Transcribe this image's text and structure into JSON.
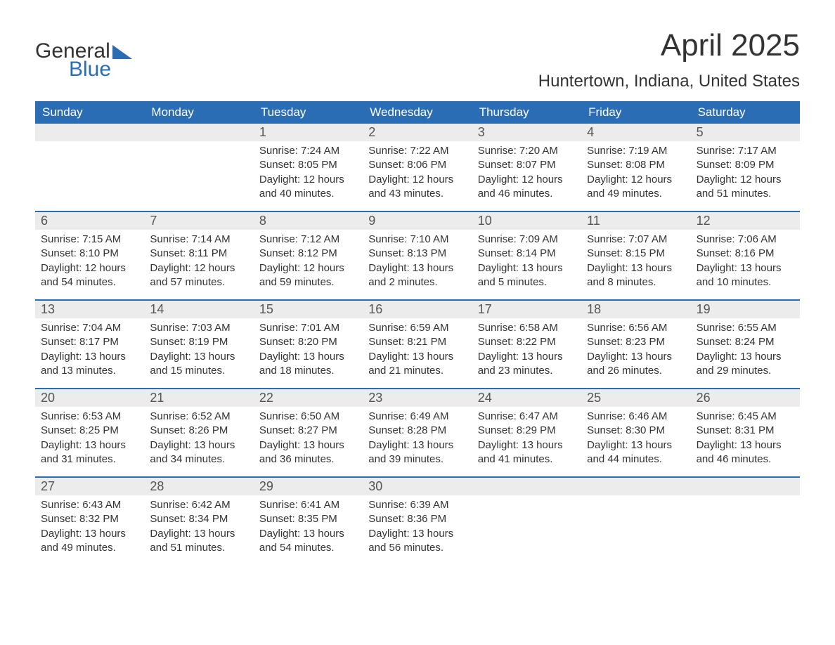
{
  "brand": {
    "part1": "General",
    "part2": "Blue"
  },
  "title": "April 2025",
  "location": "Huntertown, Indiana, United States",
  "colors": {
    "header_bg": "#2a6db5",
    "header_text": "#ffffff",
    "daynum_bg": "#ececec",
    "text": "#333333",
    "rule": "#2a6db5"
  },
  "day_headers": [
    "Sunday",
    "Monday",
    "Tuesday",
    "Wednesday",
    "Thursday",
    "Friday",
    "Saturday"
  ],
  "weeks": [
    [
      {
        "n": "",
        "sr": "",
        "ss": "",
        "dl": ""
      },
      {
        "n": "",
        "sr": "",
        "ss": "",
        "dl": ""
      },
      {
        "n": "1",
        "sr": "Sunrise: 7:24 AM",
        "ss": "Sunset: 8:05 PM",
        "dl": "Daylight: 12 hours and 40 minutes."
      },
      {
        "n": "2",
        "sr": "Sunrise: 7:22 AM",
        "ss": "Sunset: 8:06 PM",
        "dl": "Daylight: 12 hours and 43 minutes."
      },
      {
        "n": "3",
        "sr": "Sunrise: 7:20 AM",
        "ss": "Sunset: 8:07 PM",
        "dl": "Daylight: 12 hours and 46 minutes."
      },
      {
        "n": "4",
        "sr": "Sunrise: 7:19 AM",
        "ss": "Sunset: 8:08 PM",
        "dl": "Daylight: 12 hours and 49 minutes."
      },
      {
        "n": "5",
        "sr": "Sunrise: 7:17 AM",
        "ss": "Sunset: 8:09 PM",
        "dl": "Daylight: 12 hours and 51 minutes."
      }
    ],
    [
      {
        "n": "6",
        "sr": "Sunrise: 7:15 AM",
        "ss": "Sunset: 8:10 PM",
        "dl": "Daylight: 12 hours and 54 minutes."
      },
      {
        "n": "7",
        "sr": "Sunrise: 7:14 AM",
        "ss": "Sunset: 8:11 PM",
        "dl": "Daylight: 12 hours and 57 minutes."
      },
      {
        "n": "8",
        "sr": "Sunrise: 7:12 AM",
        "ss": "Sunset: 8:12 PM",
        "dl": "Daylight: 12 hours and 59 minutes."
      },
      {
        "n": "9",
        "sr": "Sunrise: 7:10 AM",
        "ss": "Sunset: 8:13 PM",
        "dl": "Daylight: 13 hours and 2 minutes."
      },
      {
        "n": "10",
        "sr": "Sunrise: 7:09 AM",
        "ss": "Sunset: 8:14 PM",
        "dl": "Daylight: 13 hours and 5 minutes."
      },
      {
        "n": "11",
        "sr": "Sunrise: 7:07 AM",
        "ss": "Sunset: 8:15 PM",
        "dl": "Daylight: 13 hours and 8 minutes."
      },
      {
        "n": "12",
        "sr": "Sunrise: 7:06 AM",
        "ss": "Sunset: 8:16 PM",
        "dl": "Daylight: 13 hours and 10 minutes."
      }
    ],
    [
      {
        "n": "13",
        "sr": "Sunrise: 7:04 AM",
        "ss": "Sunset: 8:17 PM",
        "dl": "Daylight: 13 hours and 13 minutes."
      },
      {
        "n": "14",
        "sr": "Sunrise: 7:03 AM",
        "ss": "Sunset: 8:19 PM",
        "dl": "Daylight: 13 hours and 15 minutes."
      },
      {
        "n": "15",
        "sr": "Sunrise: 7:01 AM",
        "ss": "Sunset: 8:20 PM",
        "dl": "Daylight: 13 hours and 18 minutes."
      },
      {
        "n": "16",
        "sr": "Sunrise: 6:59 AM",
        "ss": "Sunset: 8:21 PM",
        "dl": "Daylight: 13 hours and 21 minutes."
      },
      {
        "n": "17",
        "sr": "Sunrise: 6:58 AM",
        "ss": "Sunset: 8:22 PM",
        "dl": "Daylight: 13 hours and 23 minutes."
      },
      {
        "n": "18",
        "sr": "Sunrise: 6:56 AM",
        "ss": "Sunset: 8:23 PM",
        "dl": "Daylight: 13 hours and 26 minutes."
      },
      {
        "n": "19",
        "sr": "Sunrise: 6:55 AM",
        "ss": "Sunset: 8:24 PM",
        "dl": "Daylight: 13 hours and 29 minutes."
      }
    ],
    [
      {
        "n": "20",
        "sr": "Sunrise: 6:53 AM",
        "ss": "Sunset: 8:25 PM",
        "dl": "Daylight: 13 hours and 31 minutes."
      },
      {
        "n": "21",
        "sr": "Sunrise: 6:52 AM",
        "ss": "Sunset: 8:26 PM",
        "dl": "Daylight: 13 hours and 34 minutes."
      },
      {
        "n": "22",
        "sr": "Sunrise: 6:50 AM",
        "ss": "Sunset: 8:27 PM",
        "dl": "Daylight: 13 hours and 36 minutes."
      },
      {
        "n": "23",
        "sr": "Sunrise: 6:49 AM",
        "ss": "Sunset: 8:28 PM",
        "dl": "Daylight: 13 hours and 39 minutes."
      },
      {
        "n": "24",
        "sr": "Sunrise: 6:47 AM",
        "ss": "Sunset: 8:29 PM",
        "dl": "Daylight: 13 hours and 41 minutes."
      },
      {
        "n": "25",
        "sr": "Sunrise: 6:46 AM",
        "ss": "Sunset: 8:30 PM",
        "dl": "Daylight: 13 hours and 44 minutes."
      },
      {
        "n": "26",
        "sr": "Sunrise: 6:45 AM",
        "ss": "Sunset: 8:31 PM",
        "dl": "Daylight: 13 hours and 46 minutes."
      }
    ],
    [
      {
        "n": "27",
        "sr": "Sunrise: 6:43 AM",
        "ss": "Sunset: 8:32 PM",
        "dl": "Daylight: 13 hours and 49 minutes."
      },
      {
        "n": "28",
        "sr": "Sunrise: 6:42 AM",
        "ss": "Sunset: 8:34 PM",
        "dl": "Daylight: 13 hours and 51 minutes."
      },
      {
        "n": "29",
        "sr": "Sunrise: 6:41 AM",
        "ss": "Sunset: 8:35 PM",
        "dl": "Daylight: 13 hours and 54 minutes."
      },
      {
        "n": "30",
        "sr": "Sunrise: 6:39 AM",
        "ss": "Sunset: 8:36 PM",
        "dl": "Daylight: 13 hours and 56 minutes."
      },
      {
        "n": "",
        "sr": "",
        "ss": "",
        "dl": ""
      },
      {
        "n": "",
        "sr": "",
        "ss": "",
        "dl": ""
      },
      {
        "n": "",
        "sr": "",
        "ss": "",
        "dl": ""
      }
    ]
  ]
}
